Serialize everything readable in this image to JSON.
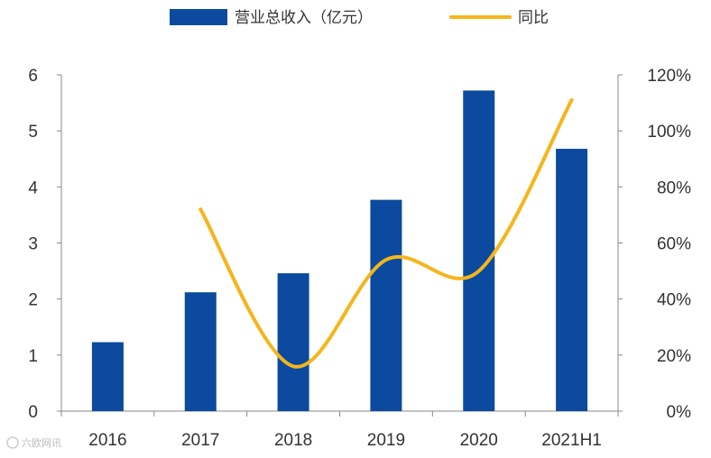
{
  "chart_data": {
    "type": "bar",
    "categories": [
      "2016",
      "2017",
      "2018",
      "2019",
      "2020",
      "2021H1"
    ],
    "series": [
      {
        "name": "营业总收入（亿元）",
        "type": "bar",
        "axis": "left",
        "color": "#0B4A9E",
        "values": [
          1.23,
          2.12,
          2.46,
          3.77,
          5.72,
          4.68
        ]
      },
      {
        "name": "同比",
        "type": "line",
        "axis": "right",
        "color": "#F5B51B",
        "values": [
          null,
          72,
          16,
          54,
          50,
          111
        ]
      }
    ],
    "y_left": {
      "min": 0,
      "max": 6,
      "ticks": [
        "0",
        "1",
        "2",
        "3",
        "4",
        "5",
        "6"
      ]
    },
    "y_right": {
      "min": 0,
      "max": 120,
      "ticks": [
        "0%",
        "20%",
        "40%",
        "60%",
        "80%",
        "100%",
        "120%"
      ]
    },
    "legend_position": "top",
    "grid": false
  },
  "watermark": "六欧网讯"
}
